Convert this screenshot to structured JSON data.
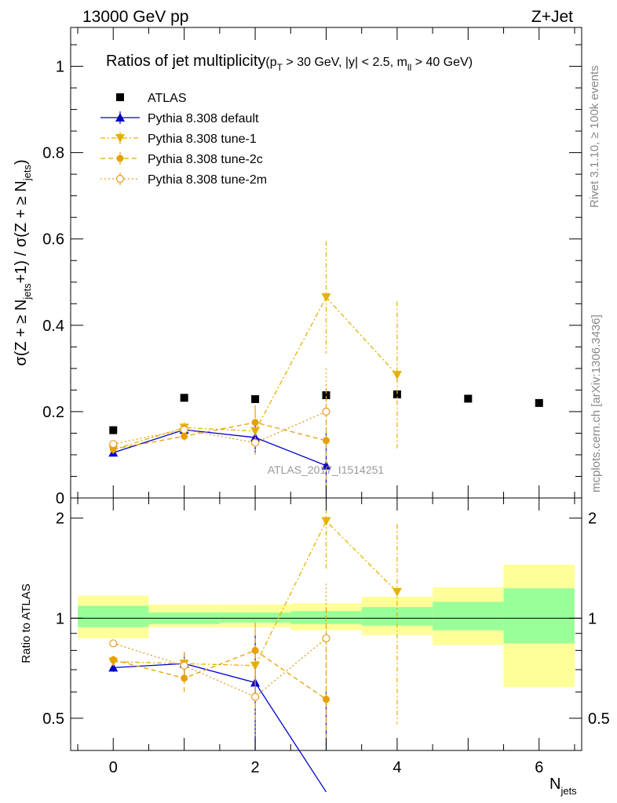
{
  "header": {
    "left": "13000 GeV pp",
    "right": "Z+Jet"
  },
  "side": {
    "rivet": "Rivet 3.1.10, ≥ 100k events",
    "mcplots": "mcplots.cern.ch [arXiv:1306.3436]"
  },
  "title": {
    "main": "Ratios of jet multiplicity",
    "cuts": "(p",
    "cuts_sub1": "T",
    "cuts_mid": " > 30 GeV, |y| < 2.5, m",
    "cuts_sub2": "ll",
    "cuts_end": " > 40 GeV)"
  },
  "watermark": "ATLAS_2017_I1514251",
  "axes": {
    "ylabel_main": "σ(Z + ≥ N_jets +1) / σ(Z + ≥ N_jets)",
    "ylabel_ratio": "Ratio to ATLAS",
    "xlabel": "N_jets",
    "xlabel_main": "N",
    "xlabel_sub": "jets"
  },
  "colors": {
    "atlas": "#000000",
    "default": "#0000cc",
    "tune1": "#e6b000",
    "tune2c": "#e6a000",
    "tune2m": "#e69a20",
    "band_inner": "#99ff99",
    "band_outer": "#ffff99"
  },
  "chart_data": {
    "type": "scatter",
    "main": {
      "xlim": [
        -0.6,
        6.6
      ],
      "ylim": [
        0,
        1.09
      ],
      "yticks": [
        0,
        0.2,
        0.4,
        0.6,
        0.8,
        1
      ],
      "ytick_labels": [
        "0",
        "0.2",
        "0.4",
        "0.6",
        "0.8",
        "1"
      ],
      "xticks": [
        0,
        2,
        4,
        6
      ],
      "xtick_labels": [
        "0",
        "2",
        "4",
        "6"
      ]
    },
    "ratio": {
      "ylim": [
        0.4,
        2.3
      ],
      "yticks": [
        0.5,
        1,
        2
      ],
      "ytick_labels": [
        "0.5",
        "1",
        "2"
      ]
    },
    "series": [
      {
        "name": "ATLAS",
        "x": [
          0,
          1,
          2,
          3,
          4,
          5,
          6
        ],
        "y": [
          0.157,
          0.232,
          0.229,
          0.238,
          0.24,
          0.23,
          0.22
        ],
        "yerr": [
          0.003,
          0.004,
          0.004,
          0.005,
          0.005,
          0.005,
          0.006
        ],
        "ratio_band_inner": [
          [
            0.94,
            1.09
          ],
          [
            0.96,
            1.04
          ],
          [
            0.97,
            1.04
          ],
          [
            0.96,
            1.05
          ],
          [
            0.95,
            1.08
          ],
          [
            0.92,
            1.12
          ],
          [
            0.84,
            1.23
          ]
        ],
        "ratio_band_outer": [
          [
            0.87,
            1.17
          ],
          [
            0.94,
            1.1
          ],
          [
            0.94,
            1.1
          ],
          [
            0.92,
            1.11
          ],
          [
            0.89,
            1.16
          ],
          [
            0.83,
            1.24
          ],
          [
            0.62,
            1.45
          ]
        ]
      },
      {
        "name": "Pythia 8.308 default",
        "x": [
          0,
          1,
          2,
          3
        ],
        "y": [
          0.105,
          0.158,
          0.14,
          0.075
        ],
        "yerr": [
          0.004,
          0.012,
          0.035,
          0.075
        ],
        "ratio": [
          0.71,
          0.73,
          0.64,
          0.3
        ],
        "ratio_err": [
          0.02,
          0.06,
          0.25,
          0.3
        ]
      },
      {
        "name": "Pythia 8.308 tune-1",
        "x": [
          0,
          1,
          2,
          3,
          4
        ],
        "y": [
          0.112,
          0.163,
          0.155,
          0.465,
          0.285
        ],
        "yerr": [
          0.004,
          0.012,
          0.05,
          0.13,
          0.17
        ],
        "ratio": [
          0.74,
          0.73,
          0.72,
          1.96,
          1.2
        ],
        "ratio_err": [
          0.02,
          0.06,
          0.22,
          0.55,
          0.72
        ]
      },
      {
        "name": "Pythia 8.308 tune-2c",
        "x": [
          0,
          1,
          2,
          3
        ],
        "y": [
          0.113,
          0.143,
          0.175,
          0.133
        ],
        "yerr": [
          0.004,
          0.01,
          0.04,
          0.12
        ],
        "ratio": [
          0.75,
          0.66,
          0.8,
          0.57
        ],
        "ratio_err": [
          0.02,
          0.07,
          0.17,
          0.5
        ]
      },
      {
        "name": "Pythia 8.308 tune-2m",
        "x": [
          0,
          1,
          2,
          3
        ],
        "y": [
          0.125,
          0.158,
          0.128,
          0.2
        ],
        "yerr": [
          0.004,
          0.01,
          0.03,
          0.1
        ],
        "ratio": [
          0.84,
          0.72,
          0.58,
          0.87
        ],
        "ratio_err": [
          0.02,
          0.06,
          0.15,
          0.4
        ]
      }
    ]
  }
}
